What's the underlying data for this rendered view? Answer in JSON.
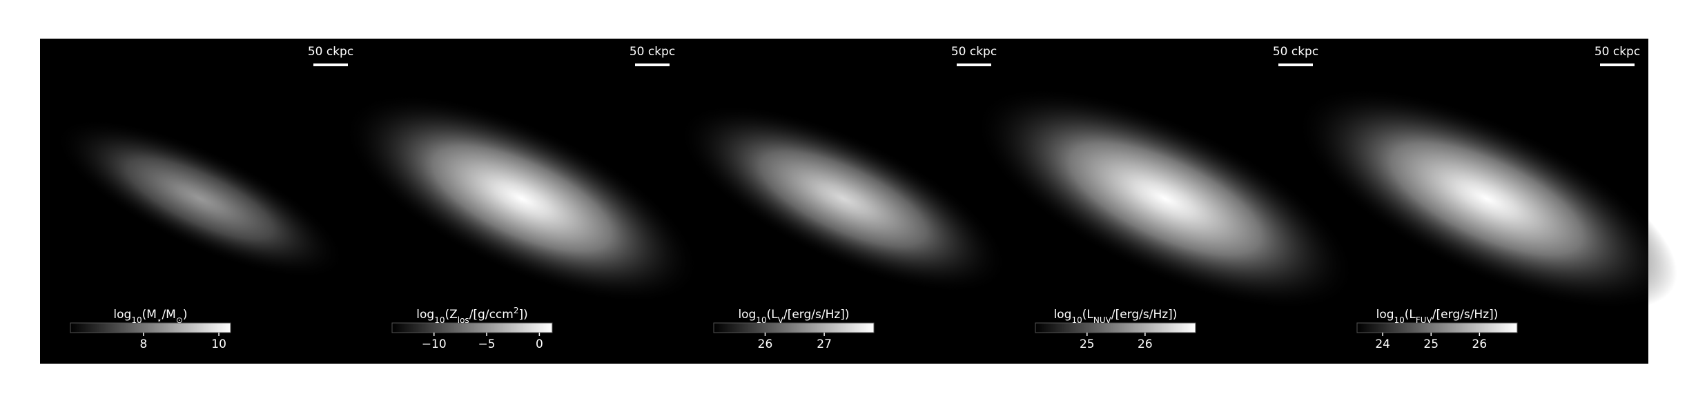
{
  "chart_data": [
    {
      "type": "image",
      "scalebar_label": "50 ckpc",
      "colormap": "gray",
      "colorbar_label": [
        {
          "text": "log"
        },
        {
          "text": "10",
          "shift": "sub"
        },
        {
          "text": "(M"
        },
        {
          "text": "⋆",
          "shift": "sub"
        },
        {
          "text": "/M"
        },
        {
          "text": "⊙",
          "shift": "sub"
        },
        {
          "text": ")"
        }
      ],
      "clim": [
        6.06,
        10.31
      ],
      "cticks": [
        8,
        10
      ]
    },
    {
      "type": "image",
      "scalebar_label": "50 ckpc",
      "colormap": "gray",
      "colorbar_label": [
        {
          "text": "log"
        },
        {
          "text": "10",
          "shift": "sub"
        },
        {
          "text": "(Z"
        },
        {
          "text": "los",
          "shift": "sub"
        },
        {
          "text": "/[g/ccm"
        },
        {
          "text": "2",
          "shift": "super"
        },
        {
          "text": "])"
        }
      ],
      "clim": [
        -13.98,
        1.22
      ],
      "cticks": [
        {
          "value": -10,
          "label": "−10"
        },
        {
          "value": -5,
          "label": "−5"
        },
        0
      ]
    },
    {
      "type": "image",
      "scalebar_label": "50 ckpc",
      "colormap": "gray",
      "colorbar_label": [
        {
          "text": "log"
        },
        {
          "text": "10",
          "shift": "sub"
        },
        {
          "text": "(L"
        },
        {
          "text": "V",
          "shift": "sub"
        },
        {
          "text": "/[erg/s/Hz])"
        }
      ],
      "clim": [
        25.13,
        27.84
      ],
      "cticks": [
        26,
        27
      ]
    },
    {
      "type": "image",
      "scalebar_label": "50 ckpc",
      "colormap": "gray",
      "colorbar_label": [
        {
          "text": "log"
        },
        {
          "text": "10",
          "shift": "sub"
        },
        {
          "text": "(L"
        },
        {
          "text": "NUV",
          "shift": "sub"
        },
        {
          "text": "/[erg/s/Hz])"
        }
      ],
      "clim": [
        24.11,
        26.87
      ],
      "cticks": [
        25,
        26
      ]
    },
    {
      "type": "image",
      "scalebar_label": "50 ckpc",
      "colormap": "gray",
      "colorbar_label": [
        {
          "text": "log"
        },
        {
          "text": "10",
          "shift": "sub"
        },
        {
          "text": "(L"
        },
        {
          "text": "FUV",
          "shift": "sub"
        },
        {
          "text": "/[erg/s/Hz])"
        }
      ],
      "clim": [
        23.47,
        26.78
      ],
      "cticks": [
        24,
        25,
        26
      ]
    }
  ]
}
